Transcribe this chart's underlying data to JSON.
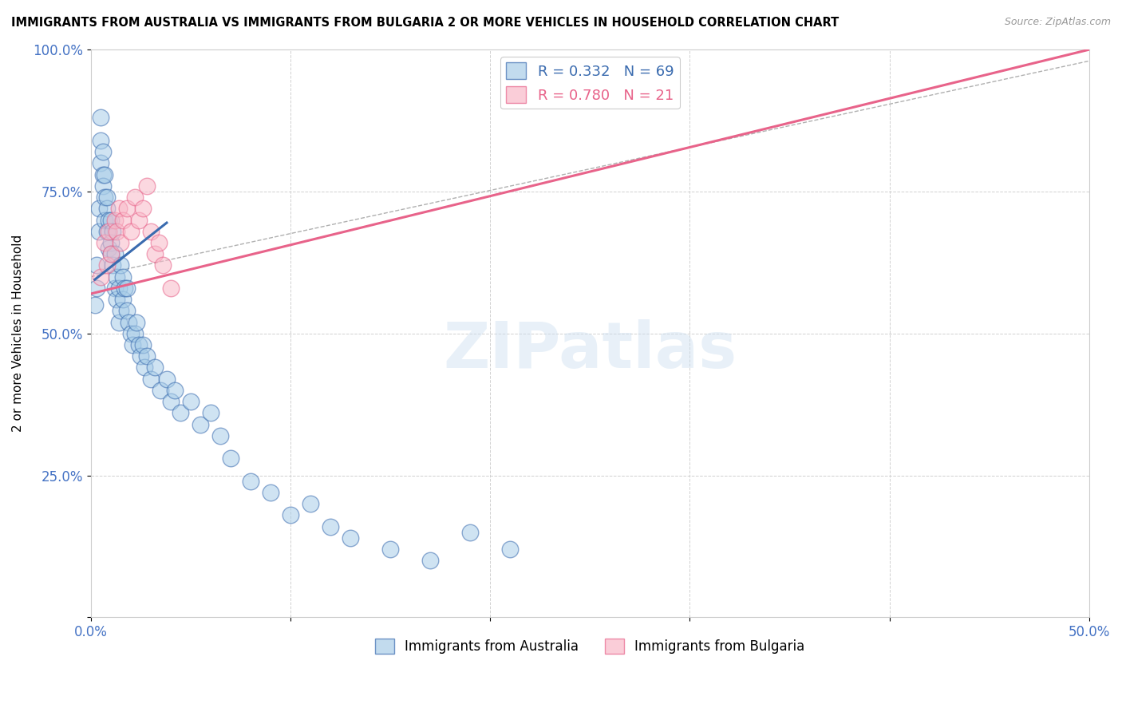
{
  "title": "IMMIGRANTS FROM AUSTRALIA VS IMMIGRANTS FROM BULGARIA 2 OR MORE VEHICLES IN HOUSEHOLD CORRELATION CHART",
  "source": "Source: ZipAtlas.com",
  "xlabel_label": "Immigrants from Australia",
  "ylabel_label": "2 or more Vehicles in Household",
  "xlim": [
    0.0,
    0.5
  ],
  "ylim": [
    0.0,
    1.0
  ],
  "xticks": [
    0.0,
    0.1,
    0.2,
    0.3,
    0.4,
    0.5
  ],
  "yticks": [
    0.0,
    0.25,
    0.5,
    0.75,
    1.0
  ],
  "xtick_labels": [
    "0.0%",
    "",
    "",
    "",
    "",
    "50.0%"
  ],
  "ytick_labels": [
    "",
    "25.0%",
    "50.0%",
    "75.0%",
    "100.0%"
  ],
  "R_australia": 0.332,
  "N_australia": 69,
  "R_bulgaria": 0.78,
  "N_bulgaria": 21,
  "color_australia": "#a8cde8",
  "color_bulgaria": "#f9b8c8",
  "color_australia_line": "#3a6baf",
  "color_bulgaria_line": "#e8638a",
  "australia_scatter_x": [
    0.002,
    0.003,
    0.003,
    0.004,
    0.004,
    0.005,
    0.005,
    0.005,
    0.006,
    0.006,
    0.006,
    0.007,
    0.007,
    0.007,
    0.008,
    0.008,
    0.008,
    0.009,
    0.009,
    0.01,
    0.01,
    0.01,
    0.011,
    0.011,
    0.012,
    0.012,
    0.013,
    0.013,
    0.014,
    0.014,
    0.015,
    0.015,
    0.016,
    0.016,
    0.017,
    0.018,
    0.018,
    0.019,
    0.02,
    0.021,
    0.022,
    0.023,
    0.024,
    0.025,
    0.026,
    0.027,
    0.028,
    0.03,
    0.032,
    0.035,
    0.038,
    0.04,
    0.042,
    0.045,
    0.05,
    0.055,
    0.06,
    0.065,
    0.07,
    0.08,
    0.09,
    0.1,
    0.11,
    0.12,
    0.13,
    0.15,
    0.17,
    0.19,
    0.21
  ],
  "australia_scatter_y": [
    0.55,
    0.62,
    0.58,
    0.68,
    0.72,
    0.8,
    0.84,
    0.88,
    0.78,
    0.82,
    0.76,
    0.74,
    0.7,
    0.78,
    0.72,
    0.68,
    0.74,
    0.65,
    0.7,
    0.66,
    0.64,
    0.7,
    0.68,
    0.62,
    0.64,
    0.58,
    0.6,
    0.56,
    0.58,
    0.52,
    0.54,
    0.62,
    0.56,
    0.6,
    0.58,
    0.54,
    0.58,
    0.52,
    0.5,
    0.48,
    0.5,
    0.52,
    0.48,
    0.46,
    0.48,
    0.44,
    0.46,
    0.42,
    0.44,
    0.4,
    0.42,
    0.38,
    0.4,
    0.36,
    0.38,
    0.34,
    0.36,
    0.32,
    0.28,
    0.24,
    0.22,
    0.18,
    0.2,
    0.16,
    0.14,
    0.12,
    0.1,
    0.15,
    0.12
  ],
  "bulgaria_scatter_x": [
    0.005,
    0.007,
    0.008,
    0.009,
    0.01,
    0.012,
    0.013,
    0.014,
    0.015,
    0.016,
    0.018,
    0.02,
    0.022,
    0.024,
    0.026,
    0.028,
    0.03,
    0.032,
    0.034,
    0.036,
    0.04
  ],
  "bulgaria_scatter_y": [
    0.6,
    0.66,
    0.62,
    0.68,
    0.64,
    0.7,
    0.68,
    0.72,
    0.66,
    0.7,
    0.72,
    0.68,
    0.74,
    0.7,
    0.72,
    0.76,
    0.68,
    0.64,
    0.66,
    0.62,
    0.58
  ],
  "australia_line_x": [
    0.002,
    0.038
  ],
  "australia_line_y": [
    0.595,
    0.695
  ],
  "bulgaria_line_x": [
    0.0,
    0.5
  ],
  "bulgaria_line_y": [
    0.57,
    1.0
  ],
  "ref_line_x": [
    0.0,
    0.5
  ],
  "ref_line_y": [
    0.6,
    0.98
  ]
}
